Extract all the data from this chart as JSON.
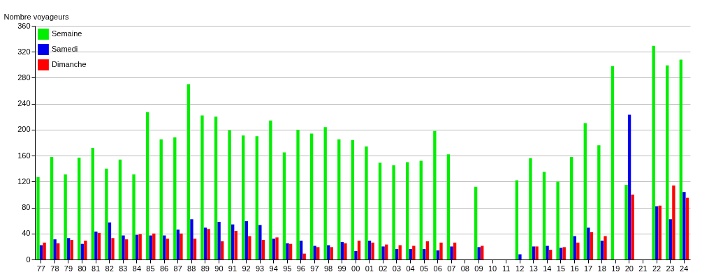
{
  "chart_data": {
    "type": "bar",
    "ylabel": "Nombre voyageurs",
    "categories": [
      "77",
      "78",
      "79",
      "80",
      "81",
      "82",
      "83",
      "84",
      "85",
      "86",
      "87",
      "88",
      "89",
      "90",
      "91",
      "92",
      "93",
      "94",
      "95",
      "96",
      "97",
      "98",
      "99",
      "00",
      "01",
      "02",
      "03",
      "04",
      "05",
      "06",
      "07",
      "08",
      "09",
      "10",
      "11",
      "12",
      "13",
      "14",
      "15",
      "16",
      "17",
      "18",
      "19",
      "20",
      "21",
      "22",
      "23",
      "24"
    ],
    "series": [
      {
        "name": "Semaine",
        "color": "#00ee00",
        "values": [
          127,
          158,
          131,
          157,
          172,
          140,
          154,
          131,
          227,
          185,
          188,
          270,
          222,
          220,
          199,
          191,
          190,
          214,
          165,
          200,
          194,
          204,
          185,
          184,
          174,
          149,
          145,
          150,
          152,
          198,
          162,
          null,
          112,
          null,
          null,
          122,
          156,
          135,
          120,
          158,
          210,
          176,
          298,
          115,
          null,
          329,
          299,
          308
        ]
      },
      {
        "name": "Samedi",
        "color": "#0000ee",
        "values": [
          22,
          31,
          33,
          24,
          43,
          57,
          37,
          38,
          37,
          37,
          46,
          62,
          49,
          58,
          54,
          59,
          53,
          32,
          25,
          29,
          21,
          22,
          27,
          13,
          29,
          20,
          16,
          16,
          16,
          14,
          20,
          null,
          19,
          null,
          null,
          8,
          20,
          21,
          18,
          36,
          49,
          29,
          null,
          223,
          null,
          82,
          62,
          104
        ]
      },
      {
        "name": "Dimanche",
        "color": "#ff0000",
        "values": [
          26,
          25,
          30,
          29,
          41,
          33,
          31,
          39,
          40,
          32,
          40,
          32,
          47,
          28,
          44,
          36,
          30,
          34,
          24,
          9,
          19,
          19,
          25,
          29,
          26,
          23,
          22,
          21,
          28,
          26,
          26,
          null,
          21,
          null,
          null,
          null,
          20,
          15,
          19,
          26,
          42,
          36,
          null,
          100,
          null,
          83,
          114,
          95
        ]
      }
    ],
    "ylim": [
      0,
      360
    ],
    "yticks": [
      0,
      40,
      80,
      120,
      160,
      200,
      240,
      280,
      320,
      360
    ],
    "grid": "y",
    "legend": "top left"
  }
}
